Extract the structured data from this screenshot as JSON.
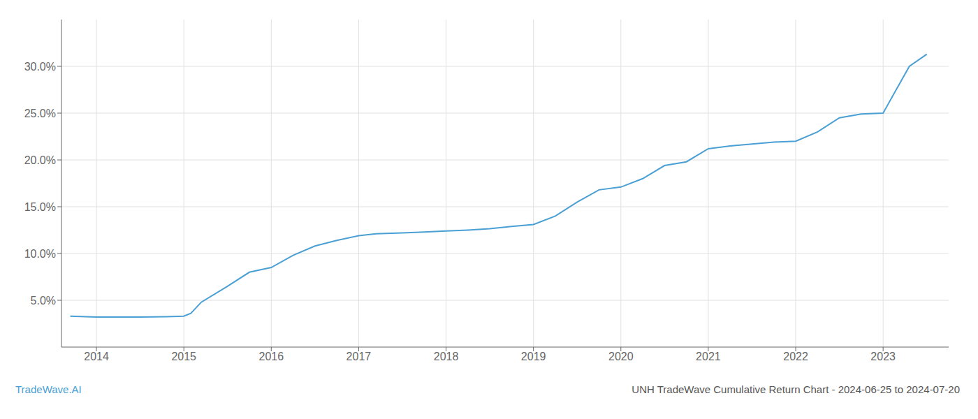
{
  "chart_data": {
    "type": "line",
    "title": "UNH TradeWave Cumulative Return Chart - 2024-06-25 to 2024-07-20",
    "annotations": [
      "TradeWave.AI"
    ],
    "color": "#4a9fd4",
    "grid": true,
    "x": [
      2013.7,
      2014.0,
      2014.2,
      2014.5,
      2014.8,
      2015.0,
      2015.08,
      2015.2,
      2015.5,
      2015.75,
      2016.0,
      2016.25,
      2016.5,
      2016.75,
      2017.0,
      2017.2,
      2017.5,
      2017.75,
      2018.0,
      2018.25,
      2018.5,
      2018.75,
      2019.0,
      2019.25,
      2019.5,
      2019.75,
      2020.0,
      2020.25,
      2020.5,
      2020.75,
      2021.0,
      2021.25,
      2021.5,
      2021.75,
      2022.0,
      2022.25,
      2022.5,
      2022.75,
      2023.0,
      2023.3,
      2023.5
    ],
    "values": [
      3.3,
      3.2,
      3.2,
      3.2,
      3.25,
      3.3,
      3.6,
      4.8,
      6.5,
      8.0,
      8.5,
      9.8,
      10.8,
      11.4,
      11.9,
      12.1,
      12.2,
      12.3,
      12.4,
      12.5,
      12.65,
      12.9,
      13.1,
      14.0,
      15.5,
      16.8,
      17.1,
      18.0,
      19.4,
      19.8,
      21.2,
      21.5,
      21.7,
      21.9,
      22.0,
      23.0,
      24.5,
      24.9,
      25.0,
      30.0,
      31.3
    ],
    "xlim": [
      2013.6,
      2023.75
    ],
    "ylim": [
      0,
      35
    ],
    "xticks": [
      2014,
      2015,
      2016,
      2017,
      2018,
      2019,
      2020,
      2021,
      2022,
      2023
    ],
    "yticks": [
      {
        "value": 5.0,
        "label": "5.0%"
      },
      {
        "value": 10.0,
        "label": "10.0%"
      },
      {
        "value": 15.0,
        "label": "15.0%"
      },
      {
        "value": 20.0,
        "label": "20.0%"
      },
      {
        "value": 25.0,
        "label": "25.0%"
      },
      {
        "value": 30.0,
        "label": "30.0%"
      }
    ]
  }
}
